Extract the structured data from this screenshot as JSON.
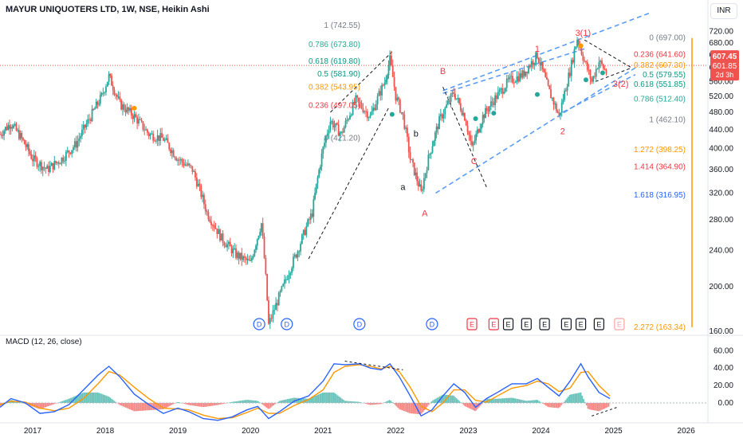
{
  "header": {
    "title": "MAYUR UNIQUOTERS LTD, 1W, NSE, Heikin Ashi",
    "currency": "INR"
  },
  "price_badge": {
    "price": "607.45",
    "second": "601.85",
    "countdown": "2d 3h",
    "color": "#ef5350"
  },
  "colors": {
    "up": "#26a69a",
    "down": "#ef5350",
    "channel": "#5b9cf6",
    "macd": "#2962ff",
    "signal": "#ff9800"
  },
  "macd": {
    "label": "MACD (12, 26, close)"
  },
  "chart_data": {
    "type": "candlestick",
    "style": "Heikin Ashi",
    "interval": "1W",
    "y_axis": {
      "ticks": [
        "720.00",
        "680.00",
        "640.00",
        "600.00",
        "560.00",
        "520.00",
        "480.00",
        "440.00",
        "400.00",
        "360.00",
        "320.00",
        "280.00",
        "240.00",
        "200.00",
        "160.00"
      ],
      "log_scale": true,
      "range": [
        160,
        760
      ]
    },
    "x_axis": {
      "ticks": [
        "2017",
        "2018",
        "2019",
        "2020",
        "2021",
        "2022",
        "2023",
        "2024",
        "2025",
        "2026"
      ]
    },
    "price_path": [
      [
        2016.55,
        430,
        440
      ],
      [
        2016.7,
        455,
        460
      ],
      [
        2016.85,
        420,
        430
      ],
      [
        2017.0,
        380,
        390
      ],
      [
        2017.2,
        360,
        340
      ],
      [
        2017.4,
        380,
        350
      ],
      [
        2017.6,
        410,
        370
      ],
      [
        2017.8,
        470,
        430
      ],
      [
        2017.95,
        520,
        480
      ],
      [
        2018.05,
        575,
        540
      ],
      [
        2018.2,
        500,
        480
      ],
      [
        2018.4,
        470,
        460
      ],
      [
        2018.6,
        430,
        420
      ],
      [
        2018.8,
        420,
        410
      ],
      [
        2019.0,
        380,
        390
      ],
      [
        2019.2,
        360,
        380
      ],
      [
        2019.4,
        290,
        320
      ],
      [
        2019.6,
        255,
        270
      ],
      [
        2019.8,
        235,
        240
      ],
      [
        2020.0,
        225,
        235
      ],
      [
        2020.15,
        275,
        230
      ],
      [
        2020.25,
        165,
        170
      ],
      [
        2020.45,
        200,
        185
      ],
      [
        2020.65,
        240,
        230
      ],
      [
        2020.85,
        290,
        270
      ],
      [
        2021.0,
        400,
        360
      ],
      [
        2021.1,
        460,
        430
      ],
      [
        2021.25,
        430,
        420
      ],
      [
        2021.45,
        510,
        500
      ],
      [
        2021.65,
        470,
        440
      ],
      [
        2021.85,
        560,
        500
      ],
      [
        2021.92,
        625,
        560
      ],
      [
        2022.0,
        520,
        500
      ],
      [
        2022.1,
        470,
        440
      ],
      [
        2022.2,
        380,
        350
      ],
      [
        2022.35,
        320,
        330
      ],
      [
        2022.45,
        380,
        360
      ],
      [
        2022.6,
        460,
        440
      ],
      [
        2022.8,
        530,
        510
      ],
      [
        2022.95,
        470,
        440
      ],
      [
        2023.05,
        400,
        420
      ],
      [
        2023.2,
        470,
        450
      ],
      [
        2023.35,
        510,
        490
      ],
      [
        2023.55,
        560,
        540
      ],
      [
        2023.75,
        580,
        560
      ],
      [
        2023.95,
        640,
        610
      ],
      [
        2024.1,
        540,
        520
      ],
      [
        2024.25,
        470,
        480
      ],
      [
        2024.4,
        590,
        560
      ],
      [
        2024.5,
        695,
        660
      ],
      [
        2024.6,
        620,
        600
      ],
      [
        2024.7,
        560,
        580
      ],
      [
        2024.8,
        620,
        600
      ],
      [
        2024.92,
        580,
        600
      ]
    ],
    "fib_left": [
      {
        "label": "1 (742.55)",
        "value": 742.55,
        "color": "#787b86"
      },
      {
        "label": "0.786 (673.80)",
        "value": 673.8,
        "color": "#22ab94"
      },
      {
        "label": "0.618 (619.80)",
        "value": 619.8,
        "color": "#089981"
      },
      {
        "label": "0.5 (581.90)",
        "value": 581.9,
        "color": "#089981"
      },
      {
        "label": "0.382 (543.95)",
        "value": 543.95,
        "color": "#ff9800"
      },
      {
        "label": "0.236 (497.05)",
        "value": 497.05,
        "color": "#f23645"
      },
      {
        "label": "0 (421.20)",
        "value": 421.2,
        "color": "#787b86"
      }
    ],
    "fib_right": [
      {
        "label": "0 (697.00)",
        "value": 697.0,
        "color": "#787b86"
      },
      {
        "label": "0.236 (641.60)",
        "value": 641.6,
        "color": "#f23645"
      },
      {
        "label": "0.382 (607.30)",
        "value": 607.3,
        "color": "#ff9800"
      },
      {
        "label": "0.5 (579.55)",
        "value": 579.55,
        "color": "#089981"
      },
      {
        "label": "0.618 (551.85)",
        "value": 551.85,
        "color": "#089981"
      },
      {
        "label": "0.786 (512.40)",
        "value": 512.4,
        "color": "#22ab94"
      },
      {
        "label": "1 (462.10)",
        "value": 462.1,
        "color": "#787b86"
      },
      {
        "label": "1.272 (398.25)",
        "value": 398.25,
        "color": "#ff9800"
      },
      {
        "label": "1.414 (364.90)",
        "value": 364.9,
        "color": "#f23645"
      },
      {
        "label": "1.618 (316.95)",
        "value": 316.95,
        "color": "#2962ff"
      },
      {
        "label": "2.272 (163.34)",
        "value": 163.34,
        "color": "#ff9800"
      }
    ],
    "wave_labels": [
      {
        "text": "3(1)",
        "x": 2024.58,
        "y": 705,
        "color": "#f23645"
      },
      {
        "text": "1",
        "x": 2023.95,
        "y": 650,
        "color": "#f23645"
      },
      {
        "text": "2",
        "x": 2024.3,
        "y": 430,
        "color": "#f23645"
      },
      {
        "text": "3(2)",
        "x": 2025.1,
        "y": 545,
        "color": "#f23645"
      },
      {
        "text": "B",
        "x": 2022.65,
        "y": 582,
        "color": "#f23645"
      },
      {
        "text": "C",
        "x": 2023.08,
        "y": 370,
        "color": "#f23645"
      },
      {
        "text": "A",
        "x": 2022.4,
        "y": 285,
        "color": "#f23645"
      },
      {
        "text": "b",
        "x": 2022.28,
        "y": 425,
        "color": "#131722"
      },
      {
        "text": "a",
        "x": 2022.1,
        "y": 325,
        "color": "#131722"
      }
    ],
    "events": [
      {
        "text": "D",
        "x": 2020.12,
        "type": "dividend"
      },
      {
        "text": "D",
        "x": 2020.5,
        "type": "dividend"
      },
      {
        "text": "D",
        "x": 2021.5,
        "type": "dividend"
      },
      {
        "text": "D",
        "x": 2022.5,
        "type": "dividend"
      },
      {
        "text": "E",
        "x": 2023.05,
        "type": "earnings-down"
      },
      {
        "text": "E",
        "x": 2023.35,
        "type": "earnings-down"
      },
      {
        "text": "E",
        "x": 2023.55,
        "type": "earnings"
      },
      {
        "text": "E",
        "x": 2023.8,
        "type": "earnings"
      },
      {
        "text": "E",
        "x": 2024.05,
        "type": "earnings"
      },
      {
        "text": "E",
        "x": 2024.35,
        "type": "earnings"
      },
      {
        "text": "E",
        "x": 2024.55,
        "type": "earnings"
      },
      {
        "text": "E",
        "x": 2024.8,
        "type": "earnings"
      },
      {
        "text": "E",
        "x": 2025.08,
        "type": "earnings-pending"
      }
    ],
    "macd_axis": {
      "ticks": [
        "60.00",
        "40.00",
        "20.00",
        "0.00"
      ],
      "range": [
        -22,
        64
      ]
    },
    "macd_line": [
      [
        2016.55,
        -5
      ],
      [
        2016.7,
        5
      ],
      [
        2016.9,
        0
      ],
      [
        2017.1,
        -12
      ],
      [
        2017.3,
        -10
      ],
      [
        2017.5,
        -2
      ],
      [
        2017.7,
        15
      ],
      [
        2017.9,
        32
      ],
      [
        2018.05,
        42
      ],
      [
        2018.2,
        30
      ],
      [
        2018.4,
        10
      ],
      [
        2018.6,
        -2
      ],
      [
        2018.8,
        -12
      ],
      [
        2019.0,
        -6
      ],
      [
        2019.15,
        -10
      ],
      [
        2019.35,
        -18
      ],
      [
        2019.55,
        -20
      ],
      [
        2019.75,
        -16
      ],
      [
        2019.95,
        -8
      ],
      [
        2020.1,
        -4
      ],
      [
        2020.25,
        -18
      ],
      [
        2020.4,
        -10
      ],
      [
        2020.6,
        2
      ],
      [
        2020.8,
        8
      ],
      [
        2021.0,
        25
      ],
      [
        2021.15,
        45
      ],
      [
        2021.3,
        44
      ],
      [
        2021.5,
        45
      ],
      [
        2021.65,
        40
      ],
      [
        2021.8,
        38
      ],
      [
        2021.92,
        45
      ],
      [
        2022.05,
        30
      ],
      [
        2022.2,
        8
      ],
      [
        2022.35,
        -15
      ],
      [
        2022.5,
        -8
      ],
      [
        2022.65,
        8
      ],
      [
        2022.8,
        22
      ],
      [
        2022.95,
        12
      ],
      [
        2023.1,
        -5
      ],
      [
        2023.25,
        5
      ],
      [
        2023.4,
        12
      ],
      [
        2023.6,
        22
      ],
      [
        2023.8,
        22
      ],
      [
        2023.95,
        28
      ],
      [
        2024.1,
        18
      ],
      [
        2024.25,
        8
      ],
      [
        2024.4,
        25
      ],
      [
        2024.55,
        45
      ],
      [
        2024.65,
        30
      ],
      [
        2024.8,
        12
      ],
      [
        2024.95,
        5
      ]
    ],
    "signal_line": [
      [
        2016.55,
        -2
      ],
      [
        2016.7,
        2
      ],
      [
        2016.9,
        1
      ],
      [
        2017.1,
        -6
      ],
      [
        2017.3,
        -9
      ],
      [
        2017.5,
        -6
      ],
      [
        2017.7,
        5
      ],
      [
        2017.9,
        22
      ],
      [
        2018.05,
        36
      ],
      [
        2018.2,
        32
      ],
      [
        2018.4,
        18
      ],
      [
        2018.6,
        5
      ],
      [
        2018.8,
        -6
      ],
      [
        2019.0,
        -7
      ],
      [
        2019.15,
        -8
      ],
      [
        2019.35,
        -14
      ],
      [
        2019.55,
        -18
      ],
      [
        2019.75,
        -17
      ],
      [
        2019.95,
        -11
      ],
      [
        2020.1,
        -6
      ],
      [
        2020.25,
        -12
      ],
      [
        2020.4,
        -12
      ],
      [
        2020.6,
        -3
      ],
      [
        2020.8,
        4
      ],
      [
        2021.0,
        15
      ],
      [
        2021.15,
        35
      ],
      [
        2021.3,
        42
      ],
      [
        2021.5,
        44
      ],
      [
        2021.65,
        42
      ],
      [
        2021.8,
        39
      ],
      [
        2021.92,
        42
      ],
      [
        2022.05,
        36
      ],
      [
        2022.2,
        18
      ],
      [
        2022.35,
        -4
      ],
      [
        2022.5,
        -10
      ],
      [
        2022.65,
        0
      ],
      [
        2022.8,
        15
      ],
      [
        2022.95,
        15
      ],
      [
        2023.1,
        3
      ],
      [
        2023.25,
        1
      ],
      [
        2023.4,
        8
      ],
      [
        2023.6,
        17
      ],
      [
        2023.8,
        20
      ],
      [
        2023.95,
        25
      ],
      [
        2024.1,
        22
      ],
      [
        2024.25,
        13
      ],
      [
        2024.4,
        17
      ],
      [
        2024.55,
        35
      ],
      [
        2024.65,
        36
      ],
      [
        2024.8,
        20
      ],
      [
        2024.95,
        8
      ]
    ]
  }
}
